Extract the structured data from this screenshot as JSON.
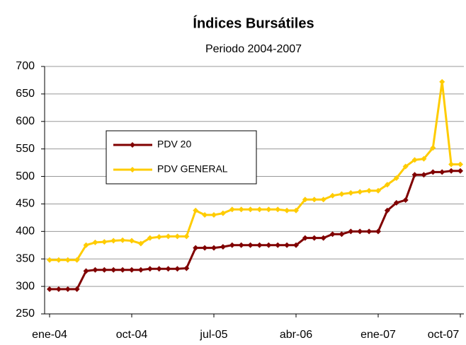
{
  "chart_data": {
    "type": "line",
    "title": "Índices Bursátiles",
    "subtitle": "Periodo 2004-2007",
    "categories": [
      "ene-04",
      null,
      null,
      null,
      null,
      null,
      null,
      null,
      null,
      "oct-04",
      null,
      null,
      null,
      null,
      null,
      null,
      null,
      null,
      "jul-05",
      null,
      null,
      null,
      null,
      null,
      null,
      null,
      null,
      "abr-06",
      null,
      null,
      null,
      null,
      null,
      null,
      null,
      null,
      "ene-07",
      null,
      null,
      null,
      null,
      null,
      null,
      null,
      null,
      "oct-07"
    ],
    "series": [
      {
        "name": "PDV 20",
        "color": "#800000",
        "values": [
          295,
          295,
          295,
          295,
          328,
          330,
          330,
          330,
          330,
          330,
          330,
          332,
          332,
          332,
          332,
          333,
          370,
          370,
          370,
          372,
          375,
          375,
          375,
          375,
          375,
          375,
          375,
          375,
          388,
          388,
          388,
          395,
          395,
          400,
          400,
          400,
          400,
          438,
          452,
          457,
          503,
          503,
          508,
          508,
          510,
          510
        ]
      },
      {
        "name": "PDV GENERAL",
        "color": "#ffcc00",
        "values": [
          348,
          348,
          348,
          348,
          375,
          380,
          381,
          383,
          384,
          383,
          378,
          388,
          390,
          391,
          391,
          391,
          438,
          430,
          430,
          433,
          440,
          440,
          440,
          440,
          440,
          440,
          438,
          438,
          458,
          458,
          458,
          465,
          468,
          470,
          472,
          474,
          474,
          485,
          497,
          518,
          530,
          532,
          552,
          672,
          522,
          522
        ]
      }
    ],
    "ylim": [
      250,
      700
    ],
    "yticks": [
      250,
      300,
      350,
      400,
      450,
      500,
      550,
      600,
      650,
      700
    ],
    "grid": true
  }
}
